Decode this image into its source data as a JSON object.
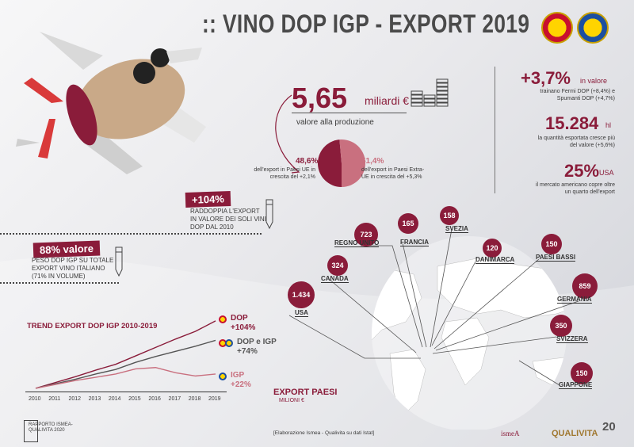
{
  "title": ":: VINO DOP IGP - EXPORT 2019",
  "main": {
    "value": "5,65",
    "unit": "miliardi €",
    "caption": "valore alla produzione",
    "left_pct": "48,6%",
    "left_text": "dell'export in Paesi UE in crescita del +2,1%",
    "right_pct": "51,4%",
    "right_text": "dell'export in Paesi Extra-UE in crescita del +5,3%"
  },
  "stats": [
    {
      "value": "+3,7%",
      "unit": "in valore",
      "text": "trainano Fermi DOP (+8,4%) e Spumanti DOP (+4,7%)"
    },
    {
      "value": "15.284",
      "unit": "hl",
      "text": "la quantità esportata cresce più del valore (+5,6%)"
    },
    {
      "value": "25%",
      "unit": "USA",
      "text": "il mercato americano copre oltre un quarto dell'export"
    }
  ],
  "callout1": {
    "value": "+104%",
    "text": "RADDOPPIA L'EXPORT IN VALORE DEI SOLI VINI DOP DAL 2010"
  },
  "callout2": {
    "value": "88% valore",
    "text": "PESO DOP IGP SU TOTALE EXPORT VINO ITALIANO (71% IN VOLUME)"
  },
  "trend_title": "TREND EXPORT DOP IGP 2010-2019",
  "legend": {
    "dop": "DOP",
    "dop_val": "+104%",
    "dopigp": "DOP e IGP",
    "dopigp_val": "+74%",
    "igp": "IGP",
    "igp_val": "+22%"
  },
  "export_title": "EXPORT PAESI",
  "export_sub": "MILIONI €",
  "source": "[Elaborazione Ismea - Qualivita su dati Istat]",
  "footer": {
    "rapporto": "RAPPORTO ISMEA-QUALIVITA 2020",
    "ismea": "ismeA",
    "qualivita": "QUALIVITA",
    "anni": "20"
  },
  "colors": {
    "wine": "#8a1c3a",
    "gray": "#555555",
    "rose": "#c9707f"
  },
  "chart_data": [
    {
      "type": "line",
      "title": "TREND EXPORT DOP IGP 2010-2019",
      "x": [
        "2010",
        "2011",
        "2012",
        "2013",
        "2014",
        "2015",
        "2016",
        "2017",
        "2018",
        "2019"
      ],
      "series": [
        {
          "name": "DOP",
          "label": "+104%",
          "values": [
            100,
            109,
            118,
            128,
            137,
            150,
            163,
            176,
            188,
            204
          ]
        },
        {
          "name": "DOP e IGP",
          "label": "+74%",
          "values": [
            100,
            107,
            114,
            122,
            129,
            140,
            149,
            157,
            165,
            174
          ]
        },
        {
          "name": "IGP",
          "label": "+22%",
          "values": [
            100,
            106,
            112,
            117,
            122,
            130,
            132,
            124,
            119,
            122
          ]
        }
      ],
      "ylim": [
        95,
        210
      ],
      "grid": false
    },
    {
      "type": "pie",
      "labels": [
        "Paesi UE",
        "Paesi Extra-UE"
      ],
      "values": [
        48.6,
        51.4
      ]
    },
    {
      "type": "bar",
      "title": "EXPORT PAESI",
      "ylabel": "MILIONI €",
      "categories": [
        "USA",
        "CANADA",
        "REGNO UNITO",
        "FRANCIA",
        "SVEZIA",
        "DANIMARCA",
        "PAESI BASSI",
        "GERMANIA",
        "SVIZZERA",
        "GIAPPONE"
      ],
      "values": [
        1434,
        324,
        723,
        165,
        158,
        120,
        150,
        859,
        350,
        150
      ],
      "labels": [
        "1.434",
        "324",
        "723",
        "165",
        "158",
        "120",
        "150",
        "859",
        "350",
        "150"
      ]
    }
  ]
}
